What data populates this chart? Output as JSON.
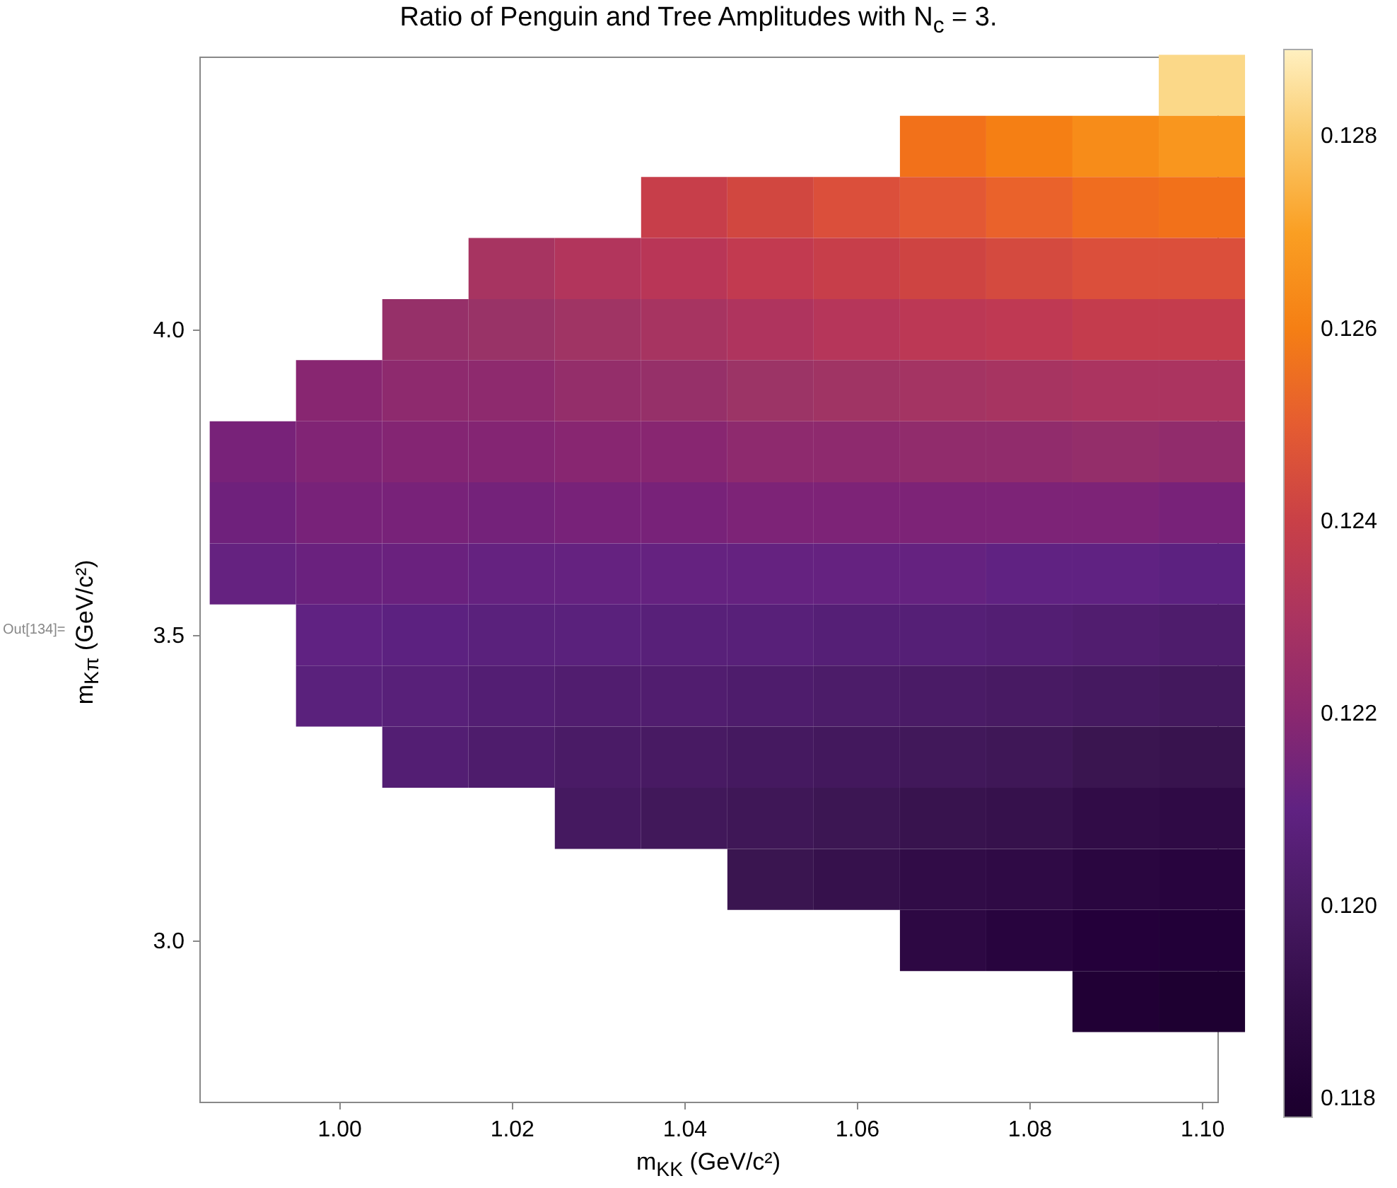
{
  "chart_data": {
    "type": "heatmap",
    "title": "Ratio of Penguin and Tree Amplitudes with N$_{c}$ = 3.",
    "xlabel": "m$_{KK}$ (GeV/c²)",
    "ylabel": "m$_{Kπ}$ (GeV/c²)",
    "annotations": [
      "Out[134]="
    ],
    "x": [
      0.99,
      1.0,
      1.01,
      1.02,
      1.03,
      1.04,
      1.05,
      1.06,
      1.07,
      1.08,
      1.09,
      1.1
    ],
    "y": [
      4.4,
      4.3,
      4.2,
      4.1,
      4.0,
      3.9,
      3.8,
      3.7,
      3.6,
      3.5,
      3.4,
      3.3,
      3.2,
      3.1,
      3.0,
      2.9
    ],
    "cells": [
      [
        null,
        null,
        null,
        null,
        null,
        null,
        null,
        null,
        null,
        null,
        null,
        0.1283
      ],
      [
        null,
        null,
        null,
        null,
        null,
        null,
        null,
        null,
        0.1256,
        0.126,
        0.1264,
        0.1267
      ],
      [
        null,
        null,
        null,
        null,
        null,
        0.1239,
        0.1243,
        0.1246,
        0.1249,
        0.1252,
        0.1255,
        0.1256
      ],
      [
        null,
        null,
        null,
        0.1229,
        0.1232,
        0.1234,
        0.1237,
        0.1239,
        0.1242,
        0.1244,
        0.1246,
        0.1246
      ],
      [
        null,
        null,
        0.1224,
        0.1225,
        0.1227,
        0.1229,
        0.1231,
        0.1233,
        0.1235,
        0.1236,
        0.1238,
        0.1238
      ],
      [
        null,
        0.1219,
        0.1221,
        0.1221,
        0.1223,
        0.1224,
        0.1226,
        0.1227,
        0.1228,
        0.1229,
        0.123,
        0.123
      ],
      [
        0.1215,
        0.1217,
        0.1218,
        0.1218,
        0.1219,
        0.1219,
        0.1221,
        0.1221,
        0.1222,
        0.1222,
        0.1223,
        0.1222
      ],
      [
        0.1213,
        0.1215,
        0.1215,
        0.1214,
        0.1215,
        0.1215,
        0.1216,
        0.1216,
        0.1216,
        0.1216,
        0.1216,
        0.1215
      ],
      [
        0.1211,
        0.1212,
        0.1212,
        0.1211,
        0.1211,
        0.1211,
        0.1211,
        0.1211,
        0.1211,
        0.121,
        0.121,
        0.1209
      ],
      [
        null,
        0.121,
        0.1209,
        0.1208,
        0.1208,
        0.1207,
        0.1207,
        0.1206,
        0.1206,
        0.1205,
        0.1204,
        0.1203
      ],
      [
        null,
        0.1208,
        0.1207,
        0.1205,
        0.1204,
        0.1204,
        0.1203,
        0.1202,
        0.1201,
        0.12,
        0.1199,
        0.1198
      ],
      [
        null,
        null,
        0.1205,
        0.1203,
        0.1201,
        0.12,
        0.1199,
        0.1198,
        0.1197,
        0.1196,
        0.1194,
        0.1193
      ],
      [
        null,
        null,
        null,
        null,
        0.1199,
        0.1197,
        0.1196,
        0.1195,
        0.1193,
        0.1192,
        0.119,
        0.1189
      ],
      [
        null,
        null,
        null,
        null,
        null,
        null,
        0.1194,
        0.1192,
        0.119,
        0.1189,
        0.1187,
        0.1186
      ],
      [
        null,
        null,
        null,
        null,
        null,
        null,
        null,
        null,
        0.1188,
        0.1186,
        0.1184,
        0.1183
      ],
      [
        null,
        null,
        null,
        null,
        null,
        null,
        null,
        null,
        null,
        null,
        0.1182,
        0.118
      ]
    ],
    "colors": [
      "#000000",
      "#3a1550",
      "#5e2282",
      "#9a3466",
      "#cc4343",
      "#f47612",
      "#fba92a",
      "#fff0c0"
    ],
    "clim": [
      0.1178,
      0.1289
    ],
    "cticks": [
      0.118,
      {
        "value": 0.12,
        "label": "0.120"
      },
      0.122,
      0.124,
      0.126,
      0.128
    ],
    "xlim": [
      0.9838,
      1.1018
    ],
    "xticks": [
      {
        "value": 1,
        "label": "1.00"
      },
      1.02,
      1.04,
      1.06,
      1.08,
      {
        "value": 1.1,
        "label": "1.10"
      }
    ],
    "ylim": [
      2.736,
      4.447
    ],
    "yticks": [
      {
        "value": 3,
        "label": "3.0"
      },
      3.5,
      {
        "value": 4,
        "label": "4.0"
      }
    ],
    "grid": false
  }
}
